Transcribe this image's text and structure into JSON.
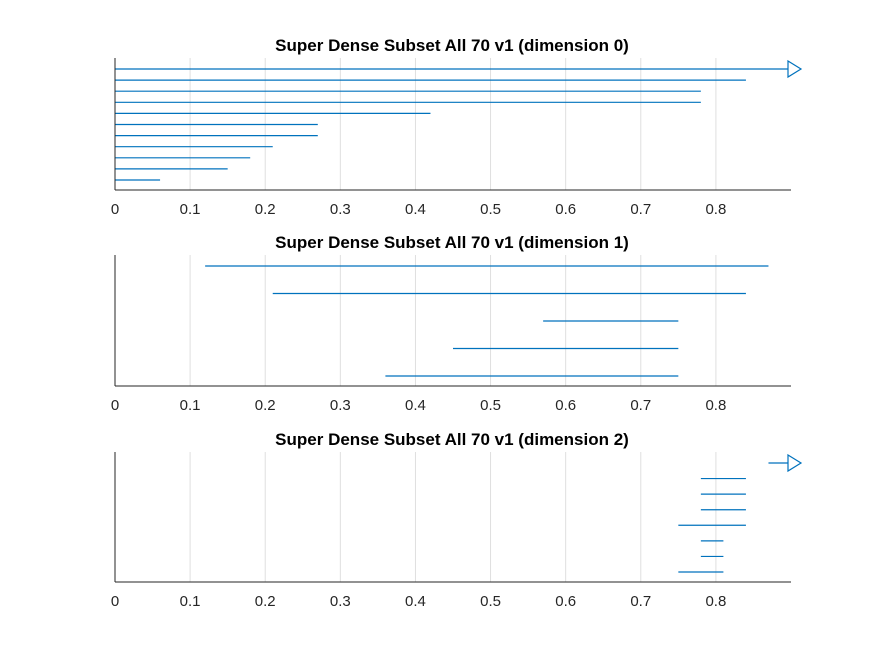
{
  "chart_data": [
    {
      "type": "barcode",
      "title": "Super Dense Subset All 70 v1 (dimension 0)",
      "xlabel": "",
      "ylabel": "",
      "xlim": [
        0,
        0.9
      ],
      "xticks": [
        "0",
        "0.1",
        "0.2",
        "0.3",
        "0.4",
        "0.5",
        "0.6",
        "0.7",
        "0.8"
      ],
      "grid": "vertical",
      "intervals": [
        {
          "birth": 0,
          "death": null
        },
        {
          "birth": 0,
          "death": 0.84
        },
        {
          "birth": 0,
          "death": 0.78
        },
        {
          "birth": 0,
          "death": 0.78
        },
        {
          "birth": 0,
          "death": 0.42
        },
        {
          "birth": 0,
          "death": 0.27
        },
        {
          "birth": 0,
          "death": 0.27
        },
        {
          "birth": 0,
          "death": 0.21
        },
        {
          "birth": 0,
          "death": 0.18
        },
        {
          "birth": 0,
          "death": 0.15
        },
        {
          "birth": 0,
          "death": 0.06
        }
      ]
    },
    {
      "type": "barcode",
      "title": "Super Dense Subset All 70 v1 (dimension 1)",
      "xlabel": "",
      "ylabel": "",
      "xlim": [
        0,
        0.9
      ],
      "xticks": [
        "0",
        "0.1",
        "0.2",
        "0.3",
        "0.4",
        "0.5",
        "0.6",
        "0.7",
        "0.8"
      ],
      "grid": "vertical",
      "intervals": [
        {
          "birth": 0.12,
          "death": 0.87
        },
        {
          "birth": 0.21,
          "death": 0.84
        },
        {
          "birth": 0.57,
          "death": 0.75
        },
        {
          "birth": 0.45,
          "death": 0.75
        },
        {
          "birth": 0.36,
          "death": 0.75
        }
      ]
    },
    {
      "type": "barcode",
      "title": "Super Dense Subset All 70 v1 (dimension 2)",
      "xlabel": "",
      "ylabel": "",
      "xlim": [
        0,
        0.9
      ],
      "xticks": [
        "0",
        "0.1",
        "0.2",
        "0.3",
        "0.4",
        "0.5",
        "0.6",
        "0.7",
        "0.8"
      ],
      "grid": "vertical",
      "intervals": [
        {
          "birth": 0.87,
          "death": null
        },
        {
          "birth": 0.78,
          "death": 0.84
        },
        {
          "birth": 0.78,
          "death": 0.84
        },
        {
          "birth": 0.78,
          "death": 0.84
        },
        {
          "birth": 0.75,
          "death": 0.84
        },
        {
          "birth": 0.78,
          "death": 0.81
        },
        {
          "birth": 0.78,
          "death": 0.81
        },
        {
          "birth": 0.75,
          "death": 0.81
        }
      ]
    }
  ],
  "colors": {
    "bar": "#0072bd",
    "axis": "#262626",
    "grid": "#dfdfdf",
    "title": "#000000"
  }
}
